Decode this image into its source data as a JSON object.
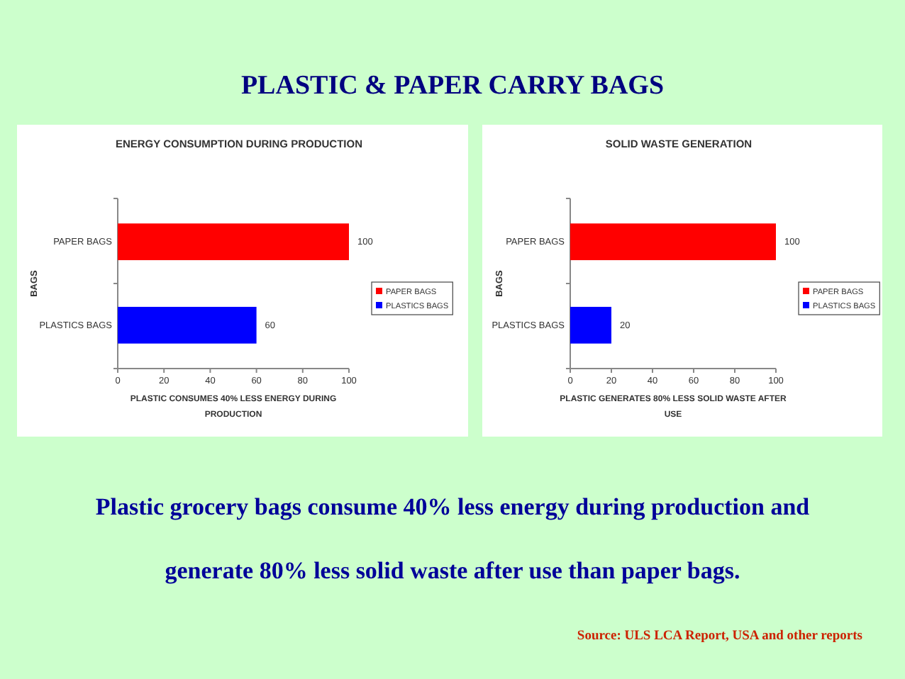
{
  "chart_data": [
    {
      "type": "other",
      "title": "PLASTIC & PAPER CARRY BAGS"
    },
    {
      "type": "bar",
      "orientation": "horizontal",
      "stacked": true,
      "title": "ENERGY CONSUMPTION DURING PRODUCTION",
      "xlabel": "PLASTIC CONSUMES 40% LESS ENERGY DURING PRODUCTION",
      "ylabel": "BAGS",
      "categories": [
        "PAPER BAGS",
        "PLASTICS BAGS"
      ],
      "series": [
        {
          "name": "PAPER BAGS",
          "color": "#ff0000",
          "values": [
            100,
            null
          ]
        },
        {
          "name": "PLASTICS BAGS",
          "color": "#0000ff",
          "values": [
            null,
            60
          ]
        }
      ],
      "xlim": [
        0,
        100
      ],
      "xticks": [
        0,
        20,
        40,
        60,
        80,
        100
      ],
      "data_labels": true,
      "legend": "right"
    },
    {
      "type": "bar",
      "orientation": "horizontal",
      "stacked": true,
      "title": "SOLID WASTE GENERATION",
      "xlabel": "PLASTIC GENERATES 80% LESS SOLID WASTE AFTER USE",
      "ylabel": "BAGS",
      "categories": [
        "PAPER BAGS",
        "PLASTICS BAGS"
      ],
      "series": [
        {
          "name": "PAPER BAGS",
          "color": "#ff0000",
          "values": [
            100,
            null
          ]
        },
        {
          "name": "PLASTICS BAGS",
          "color": "#0000ff",
          "values": [
            null,
            20
          ]
        }
      ],
      "xlim": [
        0,
        100
      ],
      "xticks": [
        0,
        20,
        40,
        60,
        80,
        100
      ],
      "data_labels": true,
      "legend": "right"
    },
    {
      "type": "other",
      "annotations": [
        "Plastic grocery bags consume 40% less energy during production and generate 80% less solid waste after use than paper bags.",
        "Source: ULS LCA Report, USA and other reports"
      ]
    }
  ]
}
